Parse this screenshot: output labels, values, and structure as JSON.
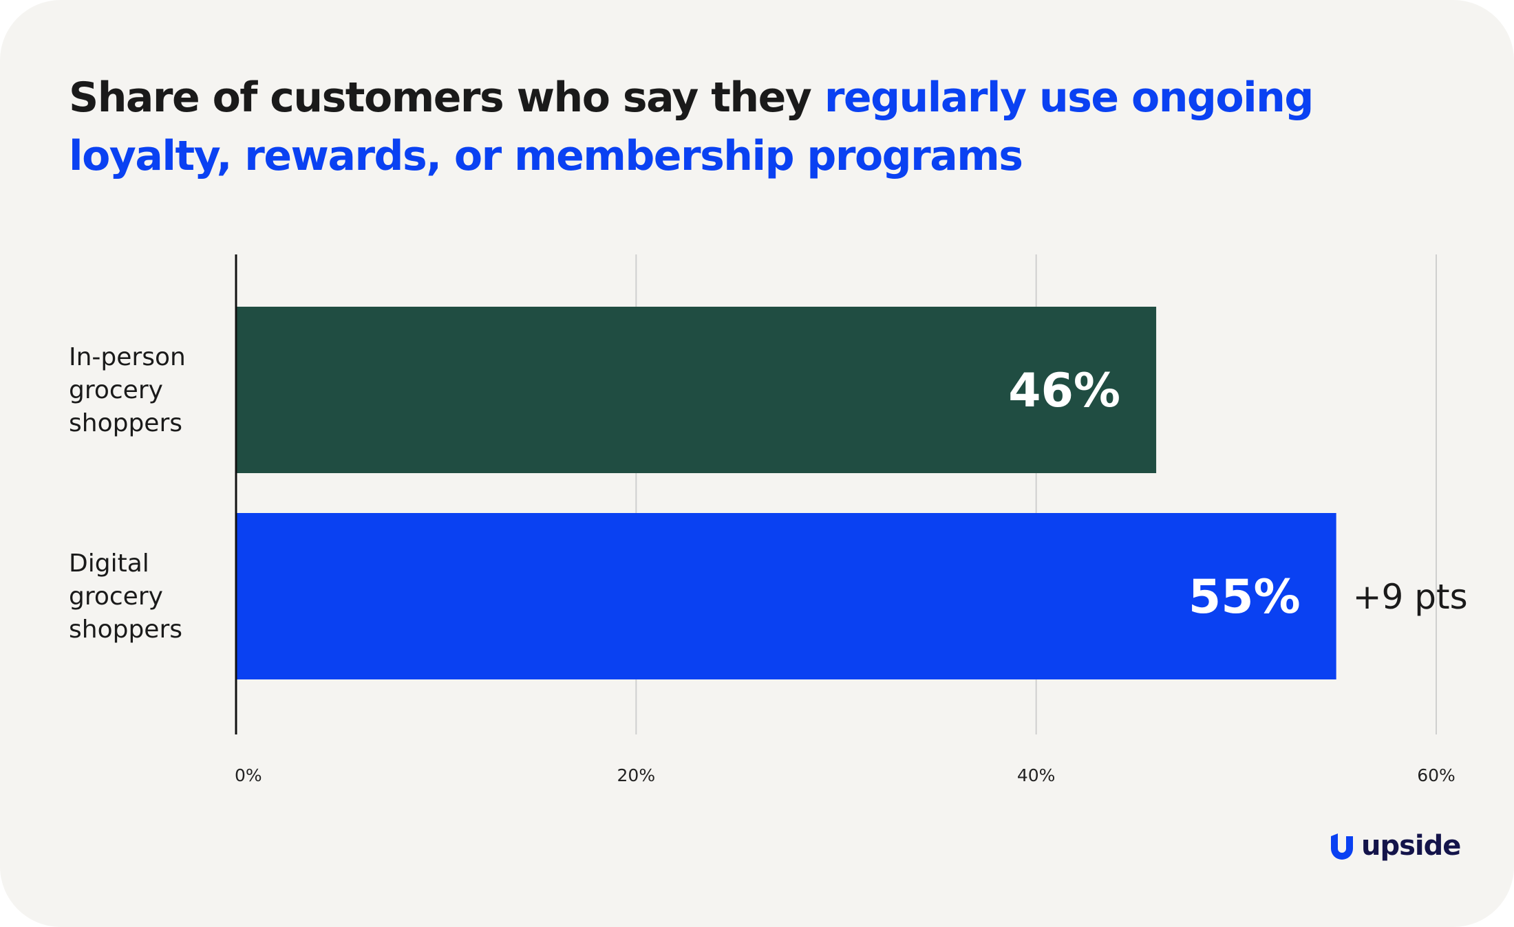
{
  "title": {
    "part1": "Share of customers who say they ",
    "part2_highlight": "regularly use ongoing loyalty, rewards, or membership programs"
  },
  "colors": {
    "background": "#f5f4f1",
    "in_person_bar": "#204d42",
    "digital_bar": "#0a41f2",
    "title_highlight": "#0a41f2",
    "gridline": "#cfcfcf",
    "text": "#1a1a1a",
    "logo": "#14144a"
  },
  "chart_data": {
    "type": "bar",
    "orientation": "horizontal",
    "title": "Share of customers who say they regularly use ongoing loyalty, rewards, or membership programs",
    "categories": [
      "In-person grocery shoppers",
      "Digital grocery shoppers"
    ],
    "category_lines": [
      [
        "In-person",
        "grocery",
        "shoppers"
      ],
      [
        "Digital",
        "grocery",
        "shoppers"
      ]
    ],
    "values": [
      46,
      55
    ],
    "value_labels": [
      "46%",
      "55%"
    ],
    "annotations": [
      {
        "category": "Digital grocery shoppers",
        "text": "+9 pts"
      }
    ],
    "xlim": [
      0,
      60
    ],
    "xticks": [
      0,
      20,
      40,
      60
    ],
    "xtick_labels": [
      "0%",
      "20%",
      "40%",
      "60%"
    ],
    "grid": true
  },
  "brand": {
    "logo_text": "upside",
    "logo_icon": "upside-logo-icon"
  }
}
